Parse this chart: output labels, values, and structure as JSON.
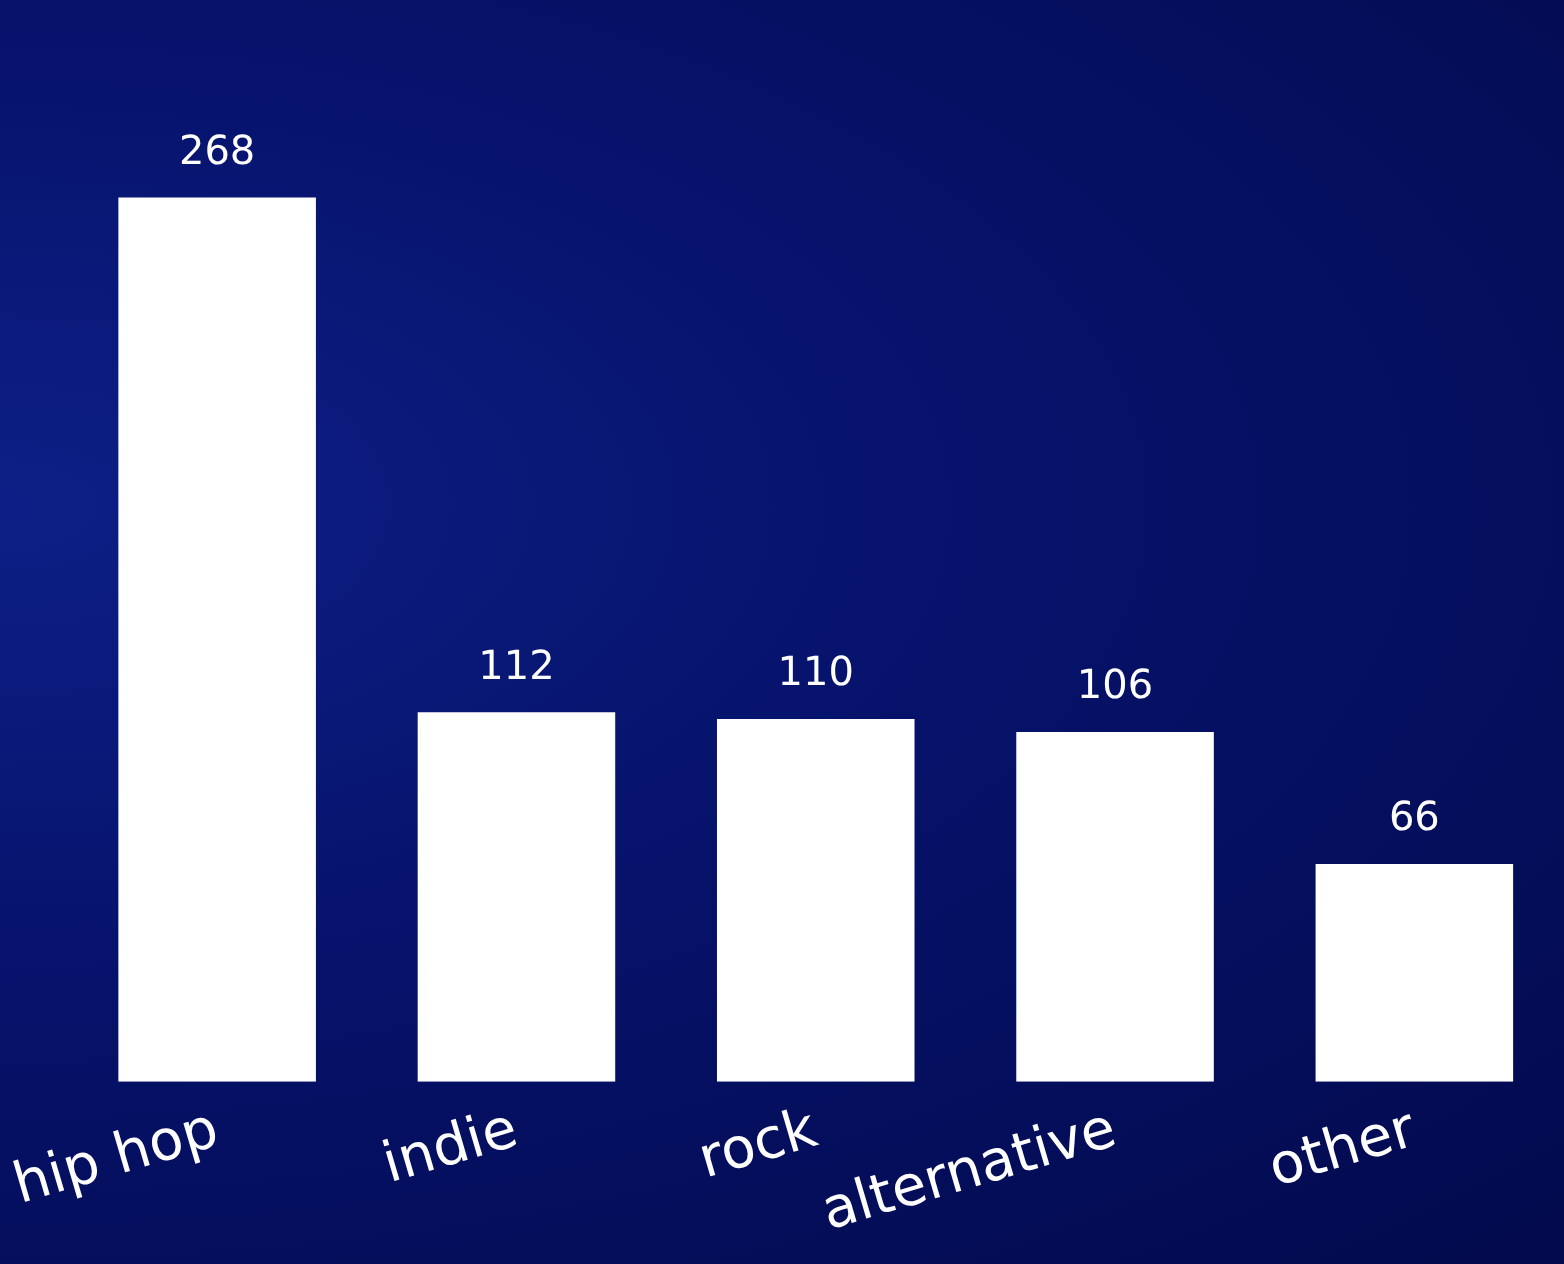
{
  "chart_data": {
    "type": "bar",
    "categories": [
      "hip hop",
      "indie",
      "rock",
      "alternative",
      "other"
    ],
    "values": [
      268,
      112,
      110,
      106,
      66
    ],
    "color": "#ffffff",
    "data_labels": true,
    "grid": false,
    "legend": false,
    "tick_labels": "x"
  }
}
